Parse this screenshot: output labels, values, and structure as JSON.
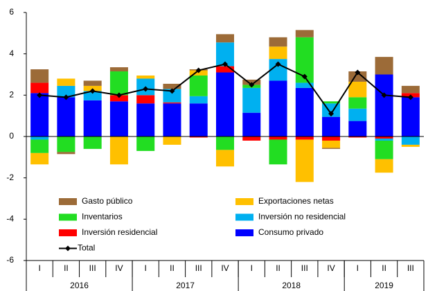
{
  "chart_data": {
    "type": "stacked-bar-line",
    "categories": [
      "I",
      "II",
      "III",
      "IV",
      "I",
      "II",
      "III",
      "IV",
      "I",
      "II",
      "III",
      "IV",
      "I",
      "II",
      "III"
    ],
    "groups": [
      {
        "name": "2016",
        "count": 4
      },
      {
        "name": "2017",
        "count": 4
      },
      {
        "name": "2018",
        "count": 4
      },
      {
        "name": "2019",
        "count": 3
      }
    ],
    "series": [
      {
        "name": "Gasto público",
        "color": "#9c6b38",
        "values": [
          0.65,
          -0.1,
          0.25,
          0.2,
          0,
          0.25,
          0.05,
          0.4,
          0.25,
          0.45,
          0.35,
          -0.05,
          0.5,
          0.85,
          0.35
        ]
      },
      {
        "name": "Exportaciones netas",
        "color": "#ffc000",
        "values": [
          -0.55,
          0.35,
          0.25,
          -1.35,
          0.15,
          -0.4,
          0.25,
          -0.8,
          0,
          0.6,
          -2.05,
          -0.35,
          0.75,
          -0.65,
          -0.1
        ]
      },
      {
        "name": "Inventarios",
        "color": "#22dd22",
        "values": [
          -0.65,
          -0.75,
          -0.6,
          1.15,
          -0.7,
          0,
          1.0,
          -0.65,
          0.15,
          -1.2,
          2.2,
          0.1,
          0.55,
          -0.9,
          0
        ]
      },
      {
        "name": "Inversión no residencial",
        "color": "#00b0f0",
        "values": [
          -0.15,
          0.55,
          0.45,
          0,
          0.8,
          0.65,
          0.35,
          1.15,
          1.2,
          1.05,
          0.25,
          0.65,
          0.6,
          -0.1,
          -0.4
        ]
      },
      {
        "name": "Inversión residencial",
        "color": "#ff0000",
        "values": [
          0.5,
          0,
          0,
          0.3,
          0.4,
          0.05,
          -0.05,
          0.3,
          -0.2,
          -0.15,
          -0.15,
          -0.2,
          -0.05,
          -0.1,
          0.2
        ]
      },
      {
        "name": "Consumo privado",
        "color": "#0000ff",
        "values": [
          2.1,
          1.9,
          1.75,
          1.7,
          1.6,
          1.6,
          1.6,
          3.1,
          1.15,
          2.7,
          2.35,
          0.95,
          0.75,
          3.0,
          1.9
        ]
      }
    ],
    "total": {
      "name": "Total",
      "color": "#000000",
      "values": [
        2.0,
        1.9,
        2.2,
        2.0,
        2.3,
        2.2,
        3.2,
        3.5,
        2.5,
        3.5,
        2.9,
        1.1,
        3.1,
        2.0,
        1.9
      ]
    },
    "ylim": [
      -6,
      6
    ],
    "yticks": [
      -6,
      -4,
      -2,
      0,
      2,
      4,
      6
    ]
  }
}
